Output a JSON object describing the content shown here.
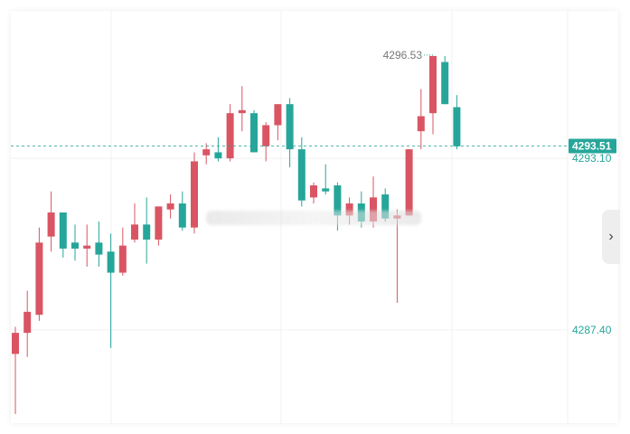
{
  "colors": {
    "up": "#d95563",
    "down": "#26a69a",
    "grid": "#f0f0f0",
    "last_price_line": "#26a69a",
    "hi_marker": "#26a69a"
  },
  "nav": {
    "scroll_right_icon": "chevron-right-icon",
    "scroll_right_glyph": "›"
  },
  "watermark": {
    "icon": "blurred-watermark"
  },
  "chart_data": {
    "type": "candlestick",
    "y_axis_ticks": [
      "4293.10",
      "4287.40"
    ],
    "y_axis_tick_values": [
      4293.1,
      4287.4
    ],
    "ylim": [
      4284.3,
      4298.0
    ],
    "last_price": {
      "label": "4293.51",
      "value": 4293.51
    },
    "high_marker": {
      "label": "4296.53",
      "value": 4296.53
    },
    "grid": true,
    "candles": [
      {
        "open": 4286.6,
        "high": 4287.5,
        "low": 4284.6,
        "close": 4287.3
      },
      {
        "open": 4287.3,
        "high": 4288.7,
        "low": 4286.5,
        "close": 4288.0
      },
      {
        "open": 4287.9,
        "high": 4290.8,
        "low": 4287.7,
        "close": 4290.3
      },
      {
        "open": 4290.5,
        "high": 4292.0,
        "low": 4290.0,
        "close": 4291.3
      },
      {
        "open": 4291.3,
        "high": 4291.3,
        "low": 4289.8,
        "close": 4290.1
      },
      {
        "open": 4290.3,
        "high": 4290.9,
        "low": 4289.7,
        "close": 4290.1
      },
      {
        "open": 4290.1,
        "high": 4290.9,
        "low": 4289.5,
        "close": 4290.2
      },
      {
        "open": 4290.3,
        "high": 4291.0,
        "low": 4289.5,
        "close": 4289.9
      },
      {
        "open": 4290.0,
        "high": 4290.6,
        "low": 4286.8,
        "close": 4289.3
      },
      {
        "open": 4289.3,
        "high": 4290.8,
        "low": 4289.2,
        "close": 4290.2
      },
      {
        "open": 4290.4,
        "high": 4291.6,
        "low": 4290.3,
        "close": 4290.9
      },
      {
        "open": 4290.9,
        "high": 4291.8,
        "low": 4289.6,
        "close": 4290.4
      },
      {
        "open": 4290.4,
        "high": 4291.5,
        "low": 4290.2,
        "close": 4291.5
      },
      {
        "open": 4291.4,
        "high": 4291.9,
        "low": 4291.1,
        "close": 4291.6
      },
      {
        "open": 4291.6,
        "high": 4292.0,
        "low": 4290.7,
        "close": 4290.8
      },
      {
        "open": 4290.8,
        "high": 4293.3,
        "low": 4290.6,
        "close": 4293.0
      },
      {
        "open": 4293.2,
        "high": 4293.6,
        "low": 4292.9,
        "close": 4293.4
      },
      {
        "open": 4293.3,
        "high": 4293.8,
        "low": 4293.0,
        "close": 4293.1
      },
      {
        "open": 4293.1,
        "high": 4294.9,
        "low": 4293.0,
        "close": 4294.6
      },
      {
        "open": 4294.6,
        "high": 4295.5,
        "low": 4294.0,
        "close": 4294.7
      },
      {
        "open": 4294.6,
        "high": 4294.7,
        "low": 4293.3,
        "close": 4293.3
      },
      {
        "open": 4293.5,
        "high": 4294.3,
        "low": 4293.0,
        "close": 4294.2
      },
      {
        "open": 4294.2,
        "high": 4294.9,
        "low": 4293.7,
        "close": 4294.9
      },
      {
        "open": 4294.9,
        "high": 4295.1,
        "low": 4292.8,
        "close": 4293.4
      },
      {
        "open": 4293.4,
        "high": 4293.8,
        "low": 4291.5,
        "close": 4291.7
      },
      {
        "open": 4291.8,
        "high": 4292.3,
        "low": 4291.6,
        "close": 4292.2
      },
      {
        "open": 4292.1,
        "high": 4292.9,
        "low": 4291.9,
        "close": 4292.0
      },
      {
        "open": 4292.2,
        "high": 4292.3,
        "low": 4290.7,
        "close": 4291.2
      },
      {
        "open": 4291.2,
        "high": 4291.8,
        "low": 4290.9,
        "close": 4291.6
      },
      {
        "open": 4291.6,
        "high": 4292.0,
        "low": 4290.8,
        "close": 4291.0
      },
      {
        "open": 4291.0,
        "high": 4292.5,
        "low": 4290.8,
        "close": 4291.8
      },
      {
        "open": 4291.9,
        "high": 4292.1,
        "low": 4291.0,
        "close": 4291.1
      },
      {
        "open": 4291.1,
        "high": 4291.4,
        "low": 4288.3,
        "close": 4291.2
      },
      {
        "open": 4291.2,
        "high": 4293.4,
        "low": 4291.2,
        "close": 4293.4
      },
      {
        "open": 4294.0,
        "high": 4295.4,
        "low": 4293.4,
        "close": 4294.5
      },
      {
        "open": 4294.6,
        "high": 4296.5,
        "low": 4293.9,
        "close": 4296.5
      },
      {
        "open": 4296.3,
        "high": 4296.5,
        "low": 4294.9,
        "close": 4294.9
      },
      {
        "open": 4294.8,
        "high": 4295.2,
        "low": 4293.4,
        "close": 4293.5
      }
    ]
  }
}
